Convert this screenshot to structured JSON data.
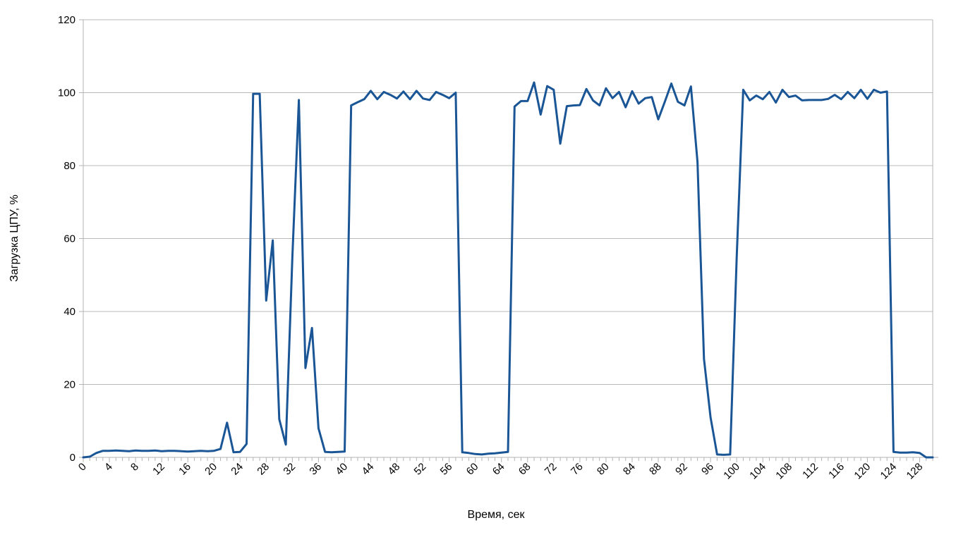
{
  "chart_data": {
    "type": "line",
    "title": "",
    "xlabel": "Время, сек",
    "ylabel": "Загрузка ЦПУ, %",
    "x_start": 0,
    "x_step": 1,
    "xlim": [
      0,
      130
    ],
    "ylim": [
      0,
      120
    ],
    "y_ticks": [
      0,
      20,
      40,
      60,
      80,
      100,
      120
    ],
    "x_ticks_labeled": [
      0,
      4,
      8,
      12,
      16,
      20,
      24,
      28,
      32,
      36,
      40,
      44,
      48,
      52,
      56,
      60,
      64,
      68,
      72,
      76,
      80,
      84,
      88,
      92,
      96,
      100,
      104,
      108,
      112,
      116,
      120,
      124,
      128
    ],
    "x_minor_tick_step": 1,
    "grid": "horizontal-major",
    "legend": "none",
    "line_color": "#1A5596",
    "values": [
      0,
      0.2,
      1.2,
      1.8,
      1.8,
      1.9,
      1.8,
      1.7,
      1.9,
      1.8,
      1.8,
      1.9,
      1.7,
      1.8,
      1.8,
      1.7,
      1.6,
      1.7,
      1.8,
      1.7,
      1.8,
      2.3,
      9.5,
      1.4,
      1.5,
      3.7,
      99.7,
      99.7,
      43,
      59.5,
      10.5,
      3.5,
      55,
      98,
      24.5,
      35.5,
      8,
      1.5,
      1.4,
      1.5,
      1.6,
      96.5,
      97.4,
      98.2,
      100.5,
      98.2,
      100.2,
      99.4,
      98.4,
      100.3,
      98.2,
      100.5,
      98.4,
      98.0,
      100.2,
      99.4,
      98.5,
      100.0,
      1.4,
      1.2,
      0.9,
      0.8,
      1.0,
      1.1,
      1.3,
      1.5,
      96.2,
      97.7,
      97.7,
      102.8,
      94.0,
      101.8,
      100.8,
      86.0,
      96.3,
      96.5,
      96.6,
      101.0,
      97.9,
      96.5,
      101.2,
      98.5,
      100.2,
      96.0,
      100.4,
      97.0,
      98.5,
      98.8,
      92.7,
      97.5,
      102.5,
      97.5,
      96.5,
      101.7,
      81,
      27,
      11,
      0.8,
      0.7,
      0.8,
      55,
      100.8,
      97.9,
      99.2,
      98.2,
      100.2,
      97.3,
      100.8,
      98.8,
      99.2,
      97.9,
      98.0,
      98.0,
      98.0,
      98.3,
      99.4,
      98.2,
      100.2,
      98.5,
      100.8,
      98.3,
      100.8,
      100.0,
      100.3,
      1.5,
      1.3,
      1.3,
      1.4,
      1.2,
      0,
      0
    ]
  },
  "styles": {
    "background": "#ffffff",
    "grid_color": "#b9b9b9",
    "axis_color": "#b3b3b3",
    "text_color": "#000000",
    "line_width": 3
  }
}
